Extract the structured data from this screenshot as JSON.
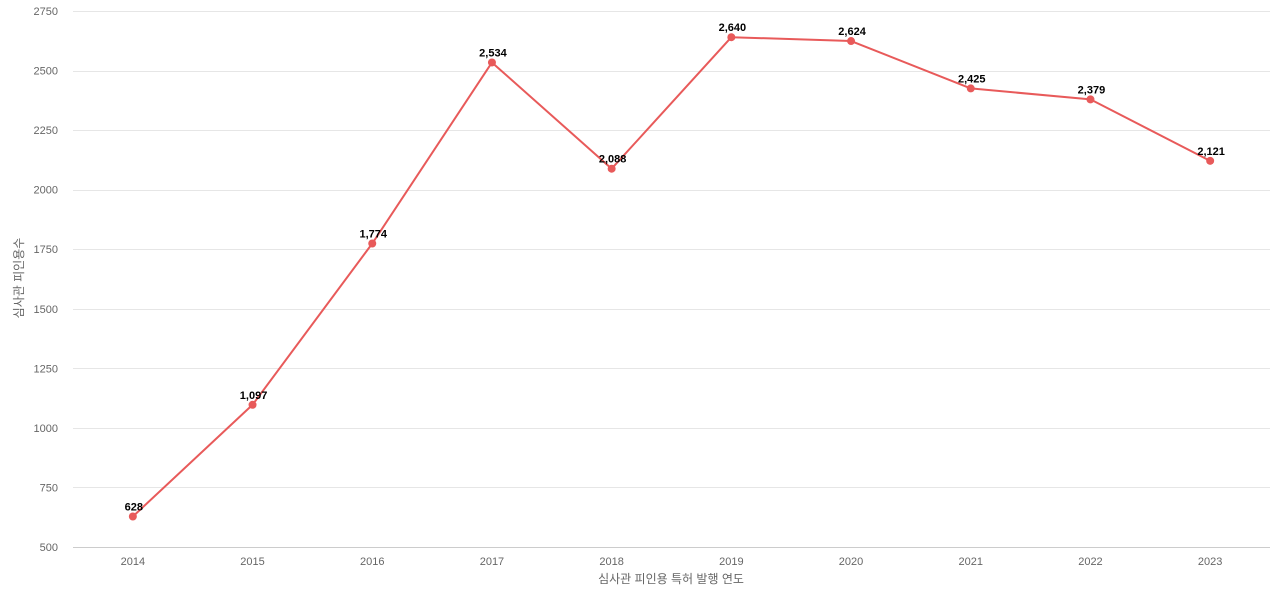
{
  "chart_data": {
    "type": "line",
    "title": "",
    "xlabel": "심사관 피인용 특허 발행 연도",
    "ylabel": "심사관 피인용수",
    "categories": [
      "2014",
      "2015",
      "2016",
      "2017",
      "2018",
      "2019",
      "2020",
      "2021",
      "2022",
      "2023"
    ],
    "series": [
      {
        "values": [
          628,
          1097,
          1774,
          2534,
          2088,
          2640,
          2624,
          2425,
          2379,
          2121
        ],
        "labels": [
          "628",
          "1,097",
          "1,774",
          "2,534",
          "2,088",
          "2,640",
          "2,624",
          "2,425",
          "2,379",
          "2,121"
        ],
        "color": "#e85a5a"
      }
    ],
    "ylim": [
      500,
      2750
    ],
    "yticks": [
      500,
      750,
      1000,
      1250,
      1500,
      1750,
      2000,
      2250,
      2500,
      2750
    ],
    "grid": true,
    "legend": "none"
  }
}
